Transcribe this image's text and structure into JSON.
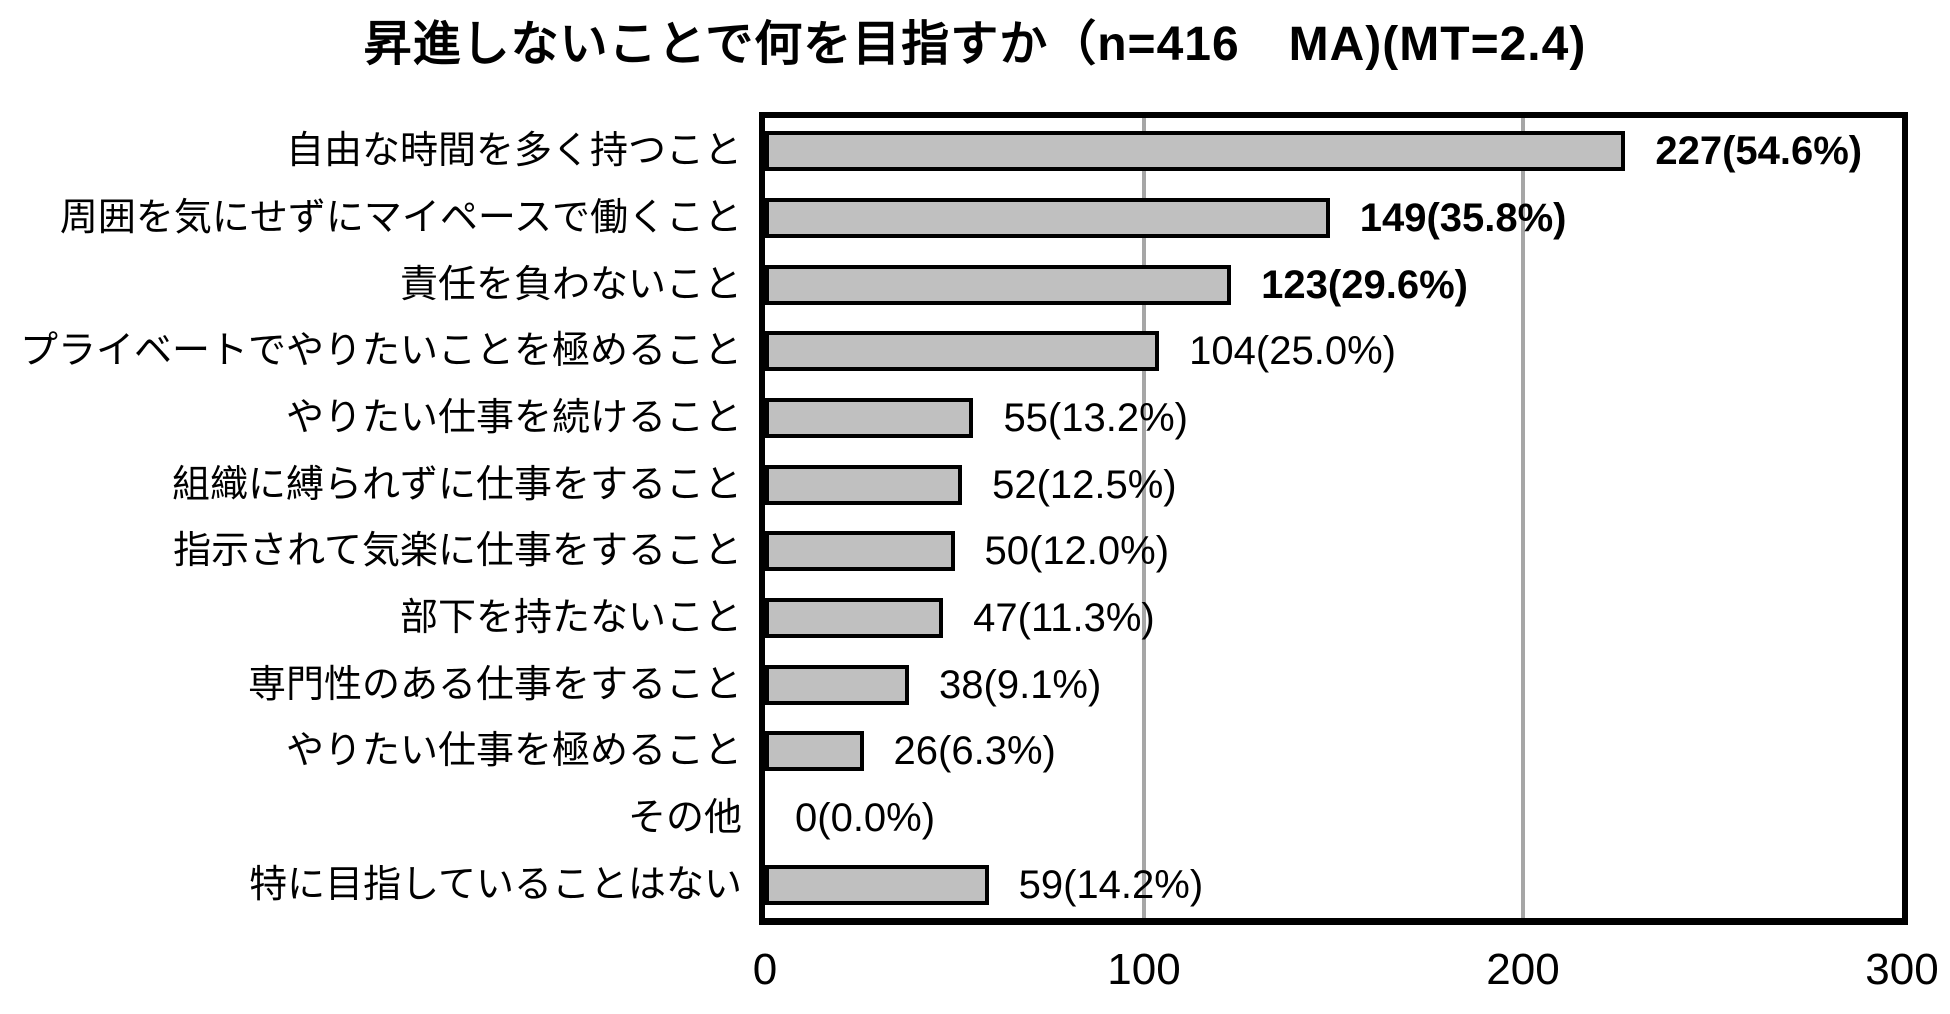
{
  "title": "昇進しないことで何を目指すか（n=416　MA)(MT=2.4)",
  "chart_data": {
    "type": "bar",
    "orientation": "horizontal",
    "title": "昇進しないことで何を目指すか（n=416　MA)(MT=2.4)",
    "categories": [
      "自由な時間を多く持つこと",
      "周囲を気にせずにマイペースで働くこと",
      "責任を負わないこと",
      "プライベートでやりたいことを極めること",
      "やりたい仕事を続けること",
      "組織に縛られずに仕事をすること",
      "指示されて気楽に仕事をすること",
      "部下を持たないこと",
      "専門性のある仕事をすること",
      "やりたい仕事を極めること",
      "その他",
      "特に目指していることはない"
    ],
    "values": [
      227,
      149,
      123,
      104,
      55,
      52,
      50,
      47,
      38,
      26,
      0,
      59
    ],
    "percents": [
      54.6,
      35.8,
      29.6,
      25.0,
      13.2,
      12.5,
      12.0,
      11.3,
      9.1,
      6.3,
      0.0,
      14.2
    ],
    "value_labels": [
      "227(54.6%)",
      "149(35.8%)",
      "123(29.6%)",
      "104(25.0%)",
      "55(13.2%)",
      "52(12.5%)",
      "50(12.0%)",
      "47(11.3%)",
      "38(9.1%)",
      "26(6.3%)",
      "0(0.0%)",
      "59(14.2%)"
    ],
    "bold_value_labels": [
      true,
      true,
      true,
      false,
      false,
      false,
      false,
      false,
      false,
      false,
      false,
      false
    ],
    "xlim": [
      0,
      300
    ],
    "xticks": [
      0,
      100,
      200,
      300
    ],
    "grid": true,
    "legend_visible": false,
    "bar_color": "#c0c0c0",
    "bar_border_color": "#000000",
    "gridline_color": "#a6a6a6",
    "axis_color": "#000000",
    "background_color": "#ffffff"
  }
}
